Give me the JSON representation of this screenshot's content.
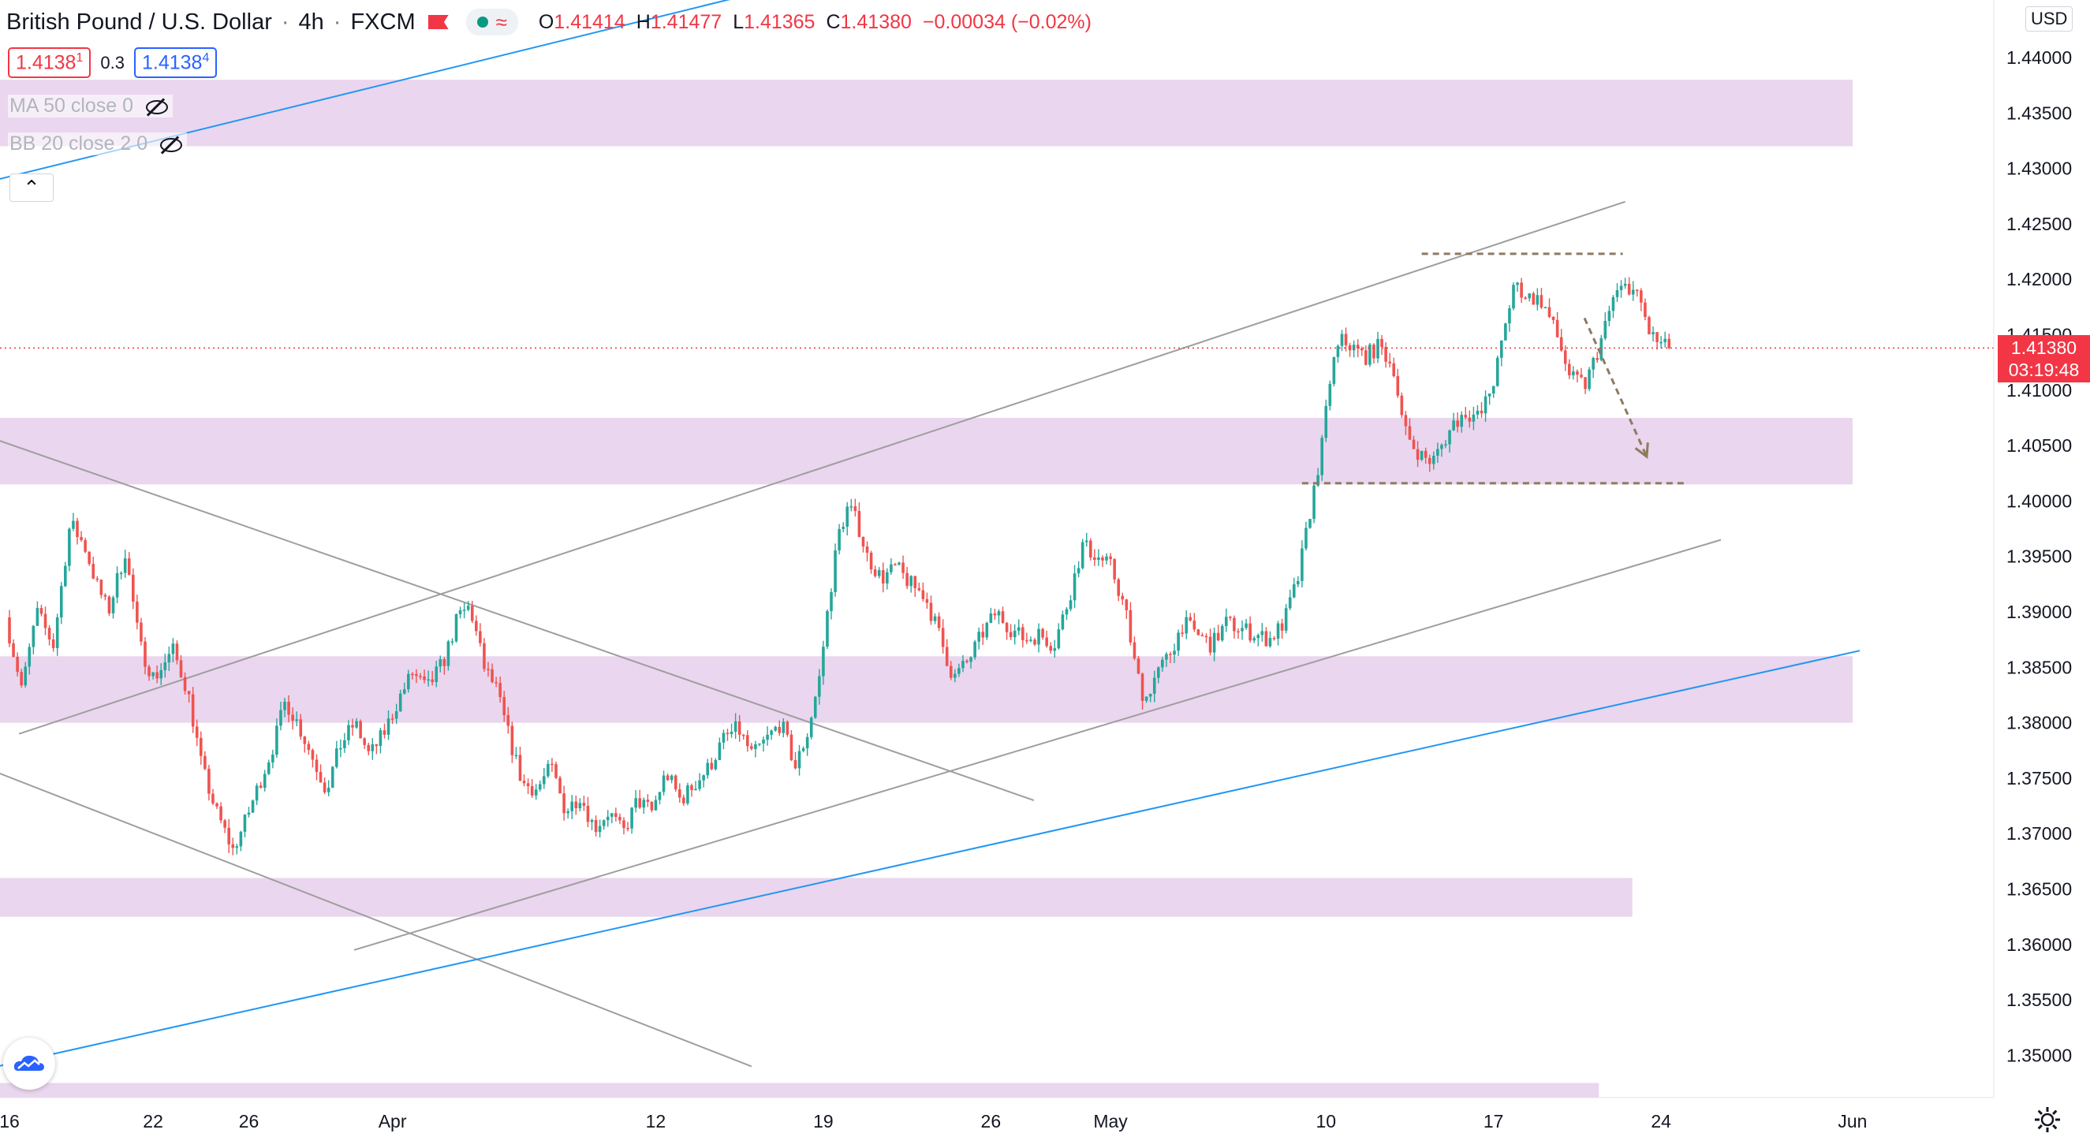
{
  "header": {
    "symbol": "British Pound / U.S. Dollar",
    "interval": "4h",
    "exchange": "FXCM",
    "ohlc": {
      "o_label": "O",
      "o": "1.41414",
      "h_label": "H",
      "h": "1.41477",
      "l_label": "L",
      "l": "1.41365",
      "c_label": "C",
      "c": "1.41380",
      "change": "−0.00034 (−0.02%)"
    },
    "flag_color": "#f23645",
    "status_icon": "market-open-dot",
    "status_color": "#089981"
  },
  "trade": {
    "sell": "1.4138",
    "sell_sup": "1",
    "spread": "0.3",
    "buy": "1.4138",
    "buy_sup": "4"
  },
  "indicators": [
    {
      "label": "MA 50 close 0",
      "icon": "eye-off-icon"
    },
    {
      "label": "BB 20 close 2 0",
      "icon": "eye-off-icon"
    }
  ],
  "price_axis": {
    "unit": "USD"
  },
  "last_price": {
    "value": "1.41380",
    "countdown": "03:19:48",
    "color": "#f23645"
  },
  "colors": {
    "bull": "#26a69a",
    "bear": "#ef5350",
    "zone": "#e6cfeb",
    "trend_gray": "#9e9e9e",
    "trend_blue": "#2196f3",
    "target": "#8d7b60"
  },
  "chart_data": {
    "type": "candlestick",
    "title": "British Pound / U.S. Dollar",
    "interval": "4h",
    "ylim": [
      1.3465,
      1.4455
    ],
    "y_ticks": [
      "1.35000",
      "1.35500",
      "1.36000",
      "1.36500",
      "1.37000",
      "1.37500",
      "1.38000",
      "1.38500",
      "1.39000",
      "1.39500",
      "1.40000",
      "1.40500",
      "1.41000",
      "1.41500",
      "1.42000",
      "1.42500",
      "1.43000",
      "1.43500",
      "1.44000"
    ],
    "x_ticks": [
      {
        "label": "16",
        "day": 0
      },
      {
        "label": "22",
        "day": 6
      },
      {
        "label": "26",
        "day": 10
      },
      {
        "label": "Apr",
        "day": 16
      },
      {
        "label": "12",
        "day": 27
      },
      {
        "label": "19",
        "day": 34
      },
      {
        "label": "26",
        "day": 41
      },
      {
        "label": "May",
        "day": 46
      },
      {
        "label": "10",
        "day": 55
      },
      {
        "label": "17",
        "day": 62
      },
      {
        "label": "24",
        "day": 69
      },
      {
        "label": "Jun",
        "day": 77
      }
    ],
    "path": [
      [
        0,
        1.3895
      ],
      [
        0.7,
        1.383
      ],
      [
        1.3,
        1.39
      ],
      [
        2.0,
        1.387
      ],
      [
        2.7,
        1.398
      ],
      [
        3.3,
        1.396
      ],
      [
        3.8,
        1.3925
      ],
      [
        4.3,
        1.39
      ],
      [
        5.0,
        1.3955
      ],
      [
        5.6,
        1.387
      ],
      [
        6.2,
        1.384
      ],
      [
        7.0,
        1.3865
      ],
      [
        7.6,
        1.383
      ],
      [
        8.2,
        1.376
      ],
      [
        8.8,
        1.372
      ],
      [
        9.5,
        1.3685
      ],
      [
        10.0,
        1.371
      ],
      [
        10.6,
        1.3745
      ],
      [
        11.2,
        1.378
      ],
      [
        11.7,
        1.382
      ],
      [
        12.2,
        1.38
      ],
      [
        12.8,
        1.377
      ],
      [
        13.4,
        1.374
      ],
      [
        14.0,
        1.378
      ],
      [
        14.6,
        1.38
      ],
      [
        15.2,
        1.377
      ],
      [
        15.8,
        1.379
      ],
      [
        16.4,
        1.382
      ],
      [
        17.0,
        1.3845
      ],
      [
        17.6,
        1.383
      ],
      [
        18.3,
        1.3855
      ],
      [
        18.9,
        1.3895
      ],
      [
        19.4,
        1.3905
      ],
      [
        20.0,
        1.385
      ],
      [
        20.5,
        1.383
      ],
      [
        21.0,
        1.379
      ],
      [
        21.6,
        1.3745
      ],
      [
        22.2,
        1.374
      ],
      [
        22.8,
        1.376
      ],
      [
        23.4,
        1.372
      ],
      [
        24.0,
        1.3735
      ],
      [
        24.6,
        1.3705
      ],
      [
        25.2,
        1.372
      ],
      [
        25.8,
        1.37
      ],
      [
        26.4,
        1.373
      ],
      [
        27.0,
        1.372
      ],
      [
        27.6,
        1.3755
      ],
      [
        28.2,
        1.373
      ],
      [
        28.8,
        1.3745
      ],
      [
        29.4,
        1.376
      ],
      [
        30.0,
        1.3785
      ],
      [
        30.6,
        1.3795
      ],
      [
        31.2,
        1.377
      ],
      [
        31.8,
        1.3785
      ],
      [
        32.4,
        1.38
      ],
      [
        33.0,
        1.376
      ],
      [
        33.5,
        1.379
      ],
      [
        34.0,
        1.384
      ],
      [
        34.4,
        1.391
      ],
      [
        34.8,
        1.397
      ],
      [
        35.2,
        1.3995
      ],
      [
        35.6,
        1.398
      ],
      [
        36.0,
        1.395
      ],
      [
        36.6,
        1.393
      ],
      [
        37.2,
        1.394
      ],
      [
        37.8,
        1.3925
      ],
      [
        38.4,
        1.3915
      ],
      [
        39.0,
        1.388
      ],
      [
        39.6,
        1.384
      ],
      [
        40.2,
        1.3855
      ],
      [
        40.8,
        1.388
      ],
      [
        41.4,
        1.39
      ],
      [
        42.0,
        1.3885
      ],
      [
        42.6,
        1.3875
      ],
      [
        43.2,
        1.388
      ],
      [
        43.8,
        1.387
      ],
      [
        44.4,
        1.391
      ],
      [
        45.0,
        1.396
      ],
      [
        45.6,
        1.395
      ],
      [
        46.2,
        1.394
      ],
      [
        46.8,
        1.39
      ],
      [
        47.2,
        1.385
      ],
      [
        47.6,
        1.382
      ],
      [
        48.0,
        1.384
      ],
      [
        48.6,
        1.386
      ],
      [
        49.2,
        1.389
      ],
      [
        49.8,
        1.388
      ],
      [
        50.4,
        1.387
      ],
      [
        51.0,
        1.389
      ],
      [
        51.6,
        1.3885
      ],
      [
        52.2,
        1.388
      ],
      [
        52.8,
        1.3875
      ],
      [
        53.4,
        1.389
      ],
      [
        54.0,
        1.393
      ],
      [
        54.5,
        1.399
      ],
      [
        55.0,
        1.405
      ],
      [
        55.4,
        1.412
      ],
      [
        55.8,
        1.4145
      ],
      [
        56.2,
        1.414
      ],
      [
        56.8,
        1.413
      ],
      [
        57.4,
        1.414
      ],
      [
        58.0,
        1.412
      ],
      [
        58.4,
        1.4065
      ],
      [
        58.8,
        1.405
      ],
      [
        59.2,
        1.404
      ],
      [
        59.6,
        1.4035
      ],
      [
        60.0,
        1.405
      ],
      [
        60.5,
        1.407
      ],
      [
        61.0,
        1.408
      ],
      [
        61.6,
        1.4075
      ],
      [
        62.2,
        1.411
      ],
      [
        62.6,
        1.415
      ],
      [
        63.0,
        1.4195
      ],
      [
        63.6,
        1.4185
      ],
      [
        64.2,
        1.418
      ],
      [
        64.8,
        1.415
      ],
      [
        65.4,
        1.411
      ],
      [
        66.0,
        1.4105
      ],
      [
        66.6,
        1.414
      ],
      [
        67.2,
        1.4185
      ],
      [
        67.8,
        1.4195
      ],
      [
        68.3,
        1.418
      ],
      [
        68.7,
        1.415
      ],
      [
        69.1,
        1.4142
      ],
      [
        69.4,
        1.4138
      ]
    ],
    "last_close": 1.4138,
    "zones": [
      {
        "y1": 1.432,
        "y2": 1.438,
        "x_end_day": 77
      },
      {
        "y1": 1.4015,
        "y2": 1.4075,
        "x_end_day": 77
      },
      {
        "y1": 1.38,
        "y2": 1.386,
        "x_end_day": 77
      },
      {
        "y1": 1.3625,
        "y2": 1.366,
        "x_end_day": 67.8
      },
      {
        "y1": 1.346,
        "y2": 1.3475,
        "x_end_day": 66.4
      }
    ],
    "trendlines": [
      {
        "kind": "gray",
        "from": [
          -0.5,
          1.4055
        ],
        "to": [
          42.8,
          1.373
        ]
      },
      {
        "kind": "gray",
        "from": [
          -0.5,
          1.3755
        ],
        "to": [
          31.0,
          1.349
        ]
      },
      {
        "kind": "gray",
        "from": [
          0.4,
          1.379
        ],
        "to": [
          67.5,
          1.427
        ]
      },
      {
        "kind": "gray",
        "from": [
          14.4,
          1.3595
        ],
        "to": [
          71.5,
          1.3965
        ]
      },
      {
        "kind": "blue",
        "from": [
          -0.5,
          1.349
        ],
        "to": [
          77.3,
          1.3865
        ]
      },
      {
        "kind": "blue",
        "from": [
          -0.5,
          1.429
        ],
        "to": [
          31.5,
          1.446
        ]
      }
    ],
    "dashed_levels": [
      {
        "y": 1.4223,
        "from_day": 59.0,
        "to_day": 67.4
      },
      {
        "y": 1.4016,
        "from_day": 54.0,
        "to_day": 70.0
      }
    ],
    "projection_arrow": {
      "from": [
        65.8,
        1.4165
      ],
      "to": [
        68.4,
        1.404
      ]
    }
  }
}
